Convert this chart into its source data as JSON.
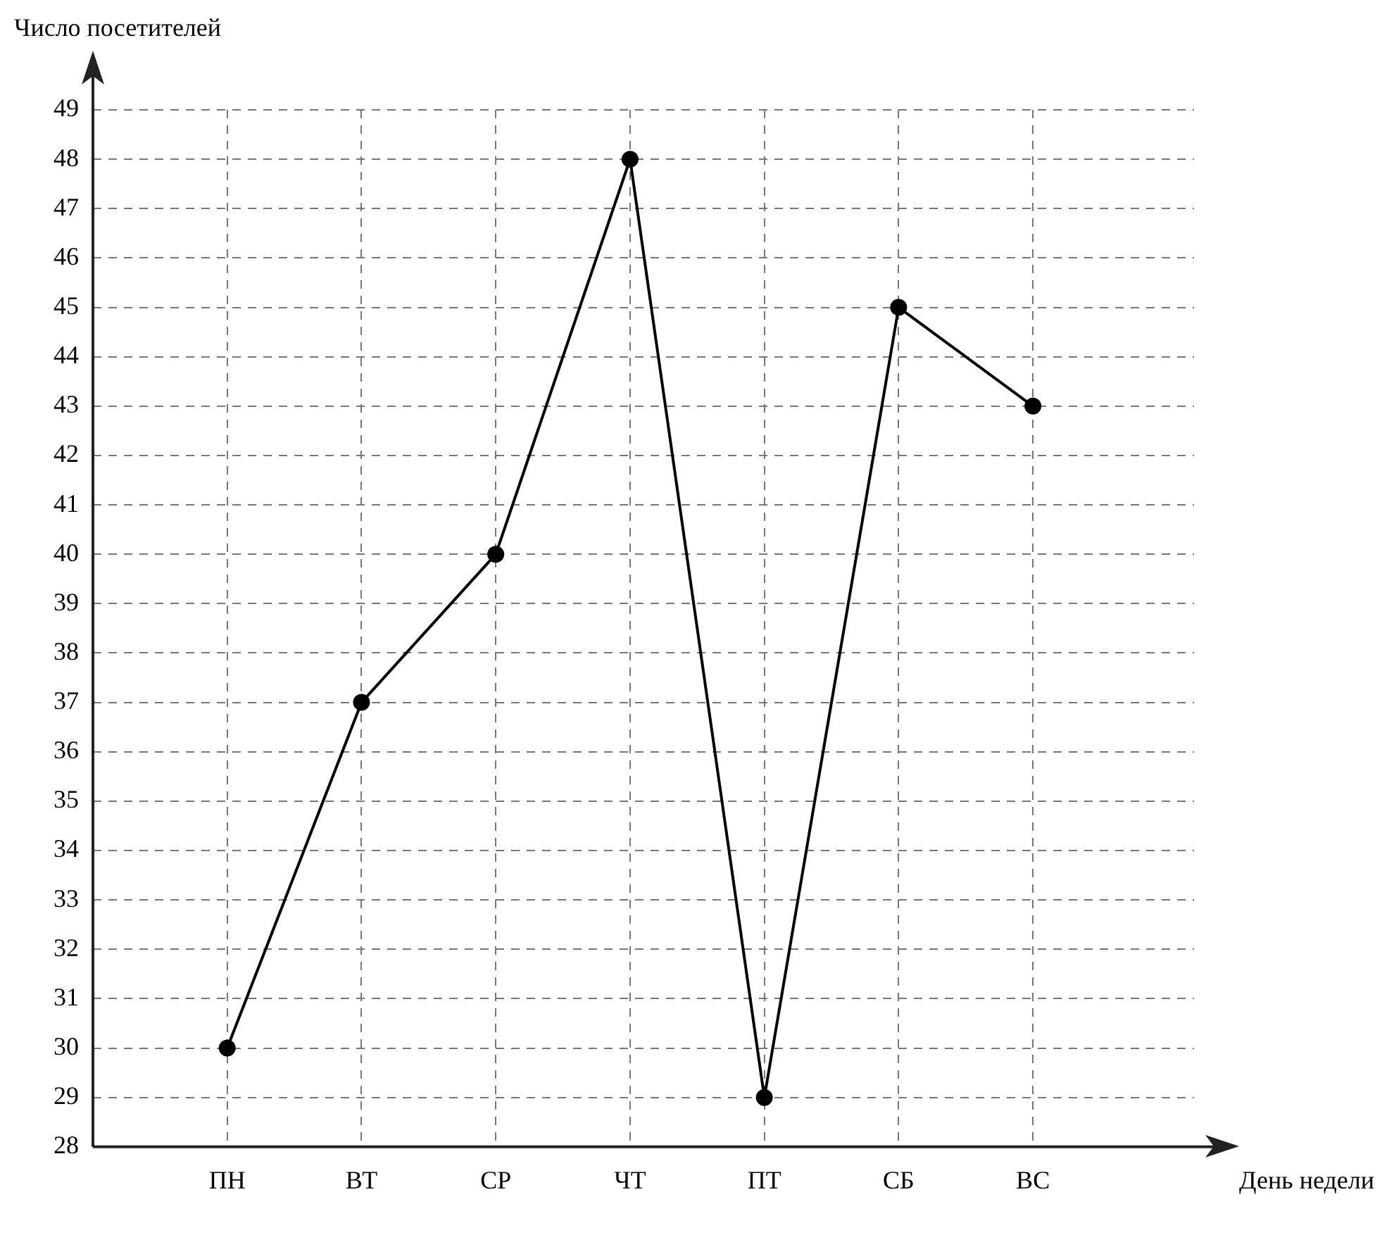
{
  "chart_data": {
    "type": "line",
    "xlabel": "День недели",
    "ylabel": "Число посетителей",
    "categories": [
      "ПН",
      "ВТ",
      "СР",
      "ЧТ",
      "ПТ",
      "СБ",
      "ВС"
    ],
    "values": [
      30,
      37,
      40,
      48,
      29,
      45,
      43
    ],
    "color": "#000000",
    "marker": "circle",
    "line_style": "solid",
    "ylim": [
      28,
      49
    ],
    "yticks": [
      28,
      29,
      30,
      31,
      32,
      33,
      34,
      35,
      36,
      37,
      38,
      39,
      40,
      41,
      42,
      43,
      44,
      45,
      46,
      47,
      48,
      49
    ],
    "grid": true
  }
}
